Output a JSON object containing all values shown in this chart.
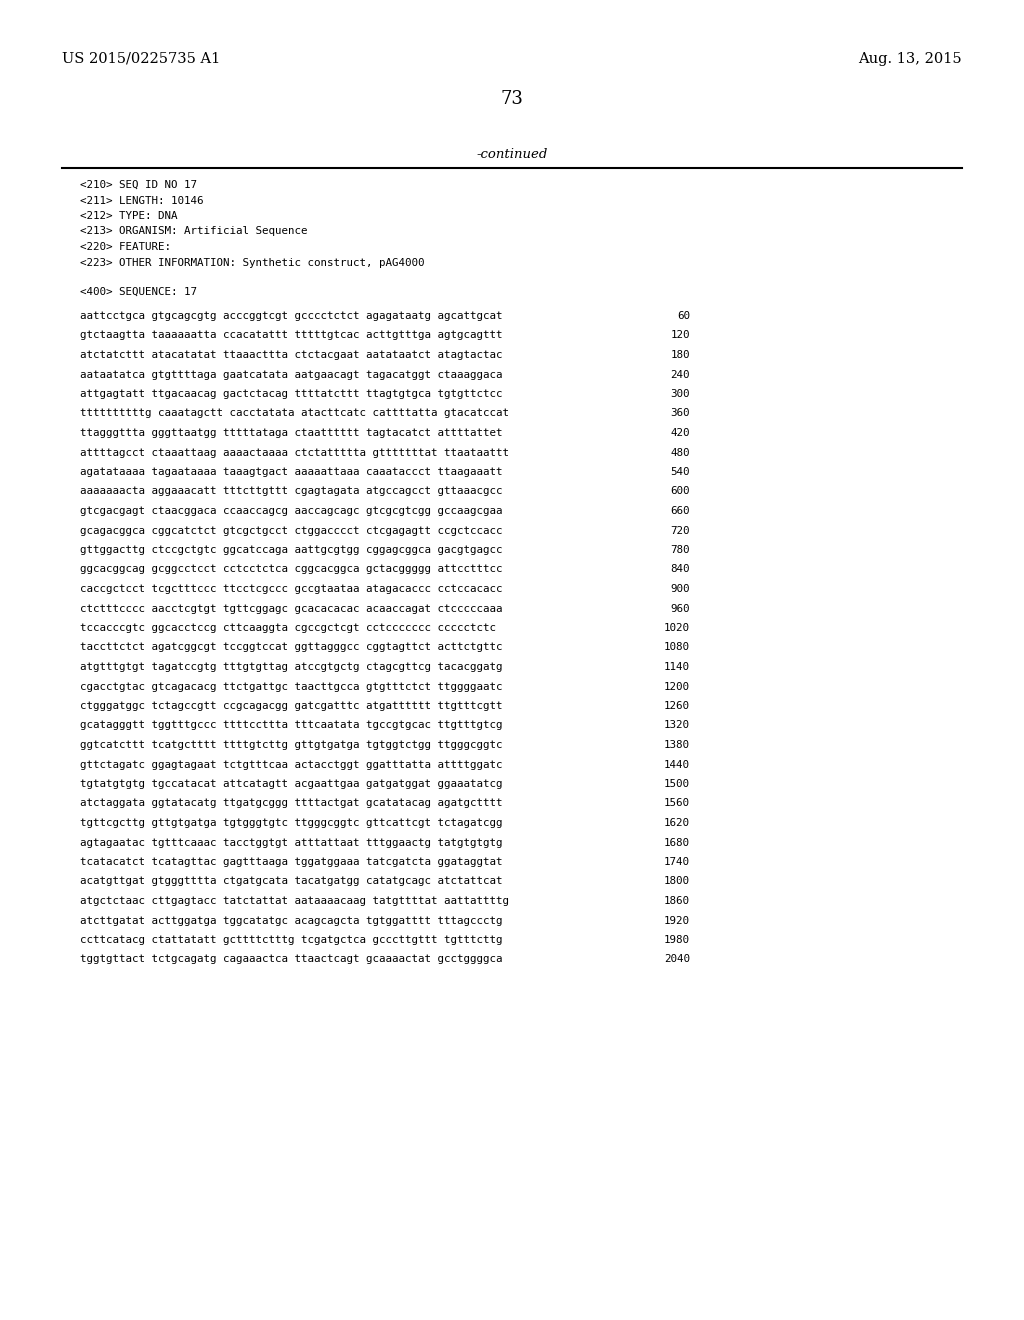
{
  "header_left": "US 2015/0225735 A1",
  "header_right": "Aug. 13, 2015",
  "page_number": "73",
  "continued_text": "-continued",
  "background_color": "#ffffff",
  "text_color": "#000000",
  "metadata": [
    "<210> SEQ ID NO 17",
    "<211> LENGTH: 10146",
    "<212> TYPE: DNA",
    "<213> ORGANISM: Artificial Sequence",
    "<220> FEATURE:",
    "<223> OTHER INFORMATION: Synthetic construct, pAG4000"
  ],
  "sequence_header": "<400> SEQUENCE: 17",
  "sequence_lines": [
    [
      "aattcctgca gtgcagcgtg acccggtcgt gcccctctct agagataatg agcattgcat",
      "60"
    ],
    [
      "gtctaagtta taaaaaatta ccacatattt tttttgtcac acttgtttga agtgcagttt",
      "120"
    ],
    [
      "atctatcttt atacatatat ttaaacttta ctctacgaat aatataatct atagtactac",
      "180"
    ],
    [
      "aataatatca gtgttttaga gaatcatata aatgaacagt tagacatggt ctaaaggaca",
      "240"
    ],
    [
      "attgagtatt ttgacaacag gactctacag ttttatcttt ttagtgtgca tgtgttctcc",
      "300"
    ],
    [
      "ttttttttttg caaatagctt cacctatata atacttcatc cattttatta gtacatccat",
      "360"
    ],
    [
      "ttagggttta gggttaatgg tttttataga ctaatttttt tagtacatct attttattet",
      "420"
    ],
    [
      "attttagcct ctaaattaag aaaactaaaa ctctattttta gtttttttat ttaataattt",
      "480"
    ],
    [
      "agatataaaa tagaataaaa taaagtgact aaaaattaaa caaataccct ttaagaaatt",
      "540"
    ],
    [
      "aaaaaaacta aggaaacatt tttcttgttt cgagtagata atgccagcct gttaaacgcc",
      "600"
    ],
    [
      "gtcgacgagt ctaacggaca ccaaccagcg aaccagcagc gtcgcgtcgg gccaagcgaa",
      "660"
    ],
    [
      "gcagacggca cggcatctct gtcgctgcct ctggacccct ctcgagagtt ccgctccacc",
      "720"
    ],
    [
      "gttggacttg ctccgctgtc ggcatccaga aattgcgtgg cggagcggca gacgtgagcc",
      "780"
    ],
    [
      "ggcacggcag gcggcctcct cctcctctca cggcacggca gctacggggg attcctttcc",
      "840"
    ],
    [
      "caccgctcct tcgctttccc ttcctcgccc gccgtaataa atagacaccc cctccacacc",
      "900"
    ],
    [
      "ctctttcccc aacctcgtgt tgttcggagc gcacacacac acaaccagat ctcccccaaa",
      "960"
    ],
    [
      "tccacccgtc ggcacctccg cttcaaggta cgccgctcgt cctccccccc ccccctctc",
      "1020"
    ],
    [
      "taccttctct agatcggcgt tccggtccat ggttagggcc cggtagttct acttctgttc",
      "1080"
    ],
    [
      "atgtttgtgt tagatccgtg tttgtgttag atccgtgctg ctagcgttcg tacacggatg",
      "1140"
    ],
    [
      "cgacctgtac gtcagacacg ttctgattgc taacttgcca gtgtttctct ttggggaatc",
      "1200"
    ],
    [
      "ctgggatggc tctagccgtt ccgcagacgg gatcgatttc atgatttttt ttgtttcgtt",
      "1260"
    ],
    [
      "gcatagggtt tggtttgccc ttttccttta tttcaatata tgccgtgcac ttgtttgtcg",
      "1320"
    ],
    [
      "ggtcatcttt tcatgctttt ttttgtcttg gttgtgatga tgtggtctgg ttgggcggtc",
      "1380"
    ],
    [
      "gttctagatc ggagtagaat tctgtttcaa actacctggt ggatttatta attttggatc",
      "1440"
    ],
    [
      "tgtatgtgtg tgccatacat attcatagtt acgaattgaa gatgatggat ggaaatatcg",
      "1500"
    ],
    [
      "atctaggata ggtatacatg ttgatgcggg ttttactgat gcatatacag agatgctttt",
      "1560"
    ],
    [
      "tgttcgcttg gttgtgatga tgtgggtgtc ttgggcggtc gttcattcgt tctagatcgg",
      "1620"
    ],
    [
      "agtagaatac tgtttcaaac tacctggtgt atttattaat tttggaactg tatgtgtgtg",
      "1680"
    ],
    [
      "tcatacatct tcatagttac gagtttaaga tggatggaaa tatcgatcta ggataggtat",
      "1740"
    ],
    [
      "acatgttgat gtgggtttta ctgatgcata tacatgatgg catatgcagc atctattcat",
      "1800"
    ],
    [
      "atgctctaac cttgagtacc tatctattat aataaaacaag tatgttttat aattattttg",
      "1860"
    ],
    [
      "atcttgatat acttggatga tggcatatgc acagcagcta tgtggatttt tttagccctg",
      "1920"
    ],
    [
      "ccttcatacg ctattatatt gcttttctttg tcgatgctca gcccttgttt tgtttcttg",
      "1980"
    ],
    [
      "tggtgttact tctgcagatg cagaaactca ttaactcagt gcaaaactat gcctggggca",
      "2040"
    ]
  ]
}
